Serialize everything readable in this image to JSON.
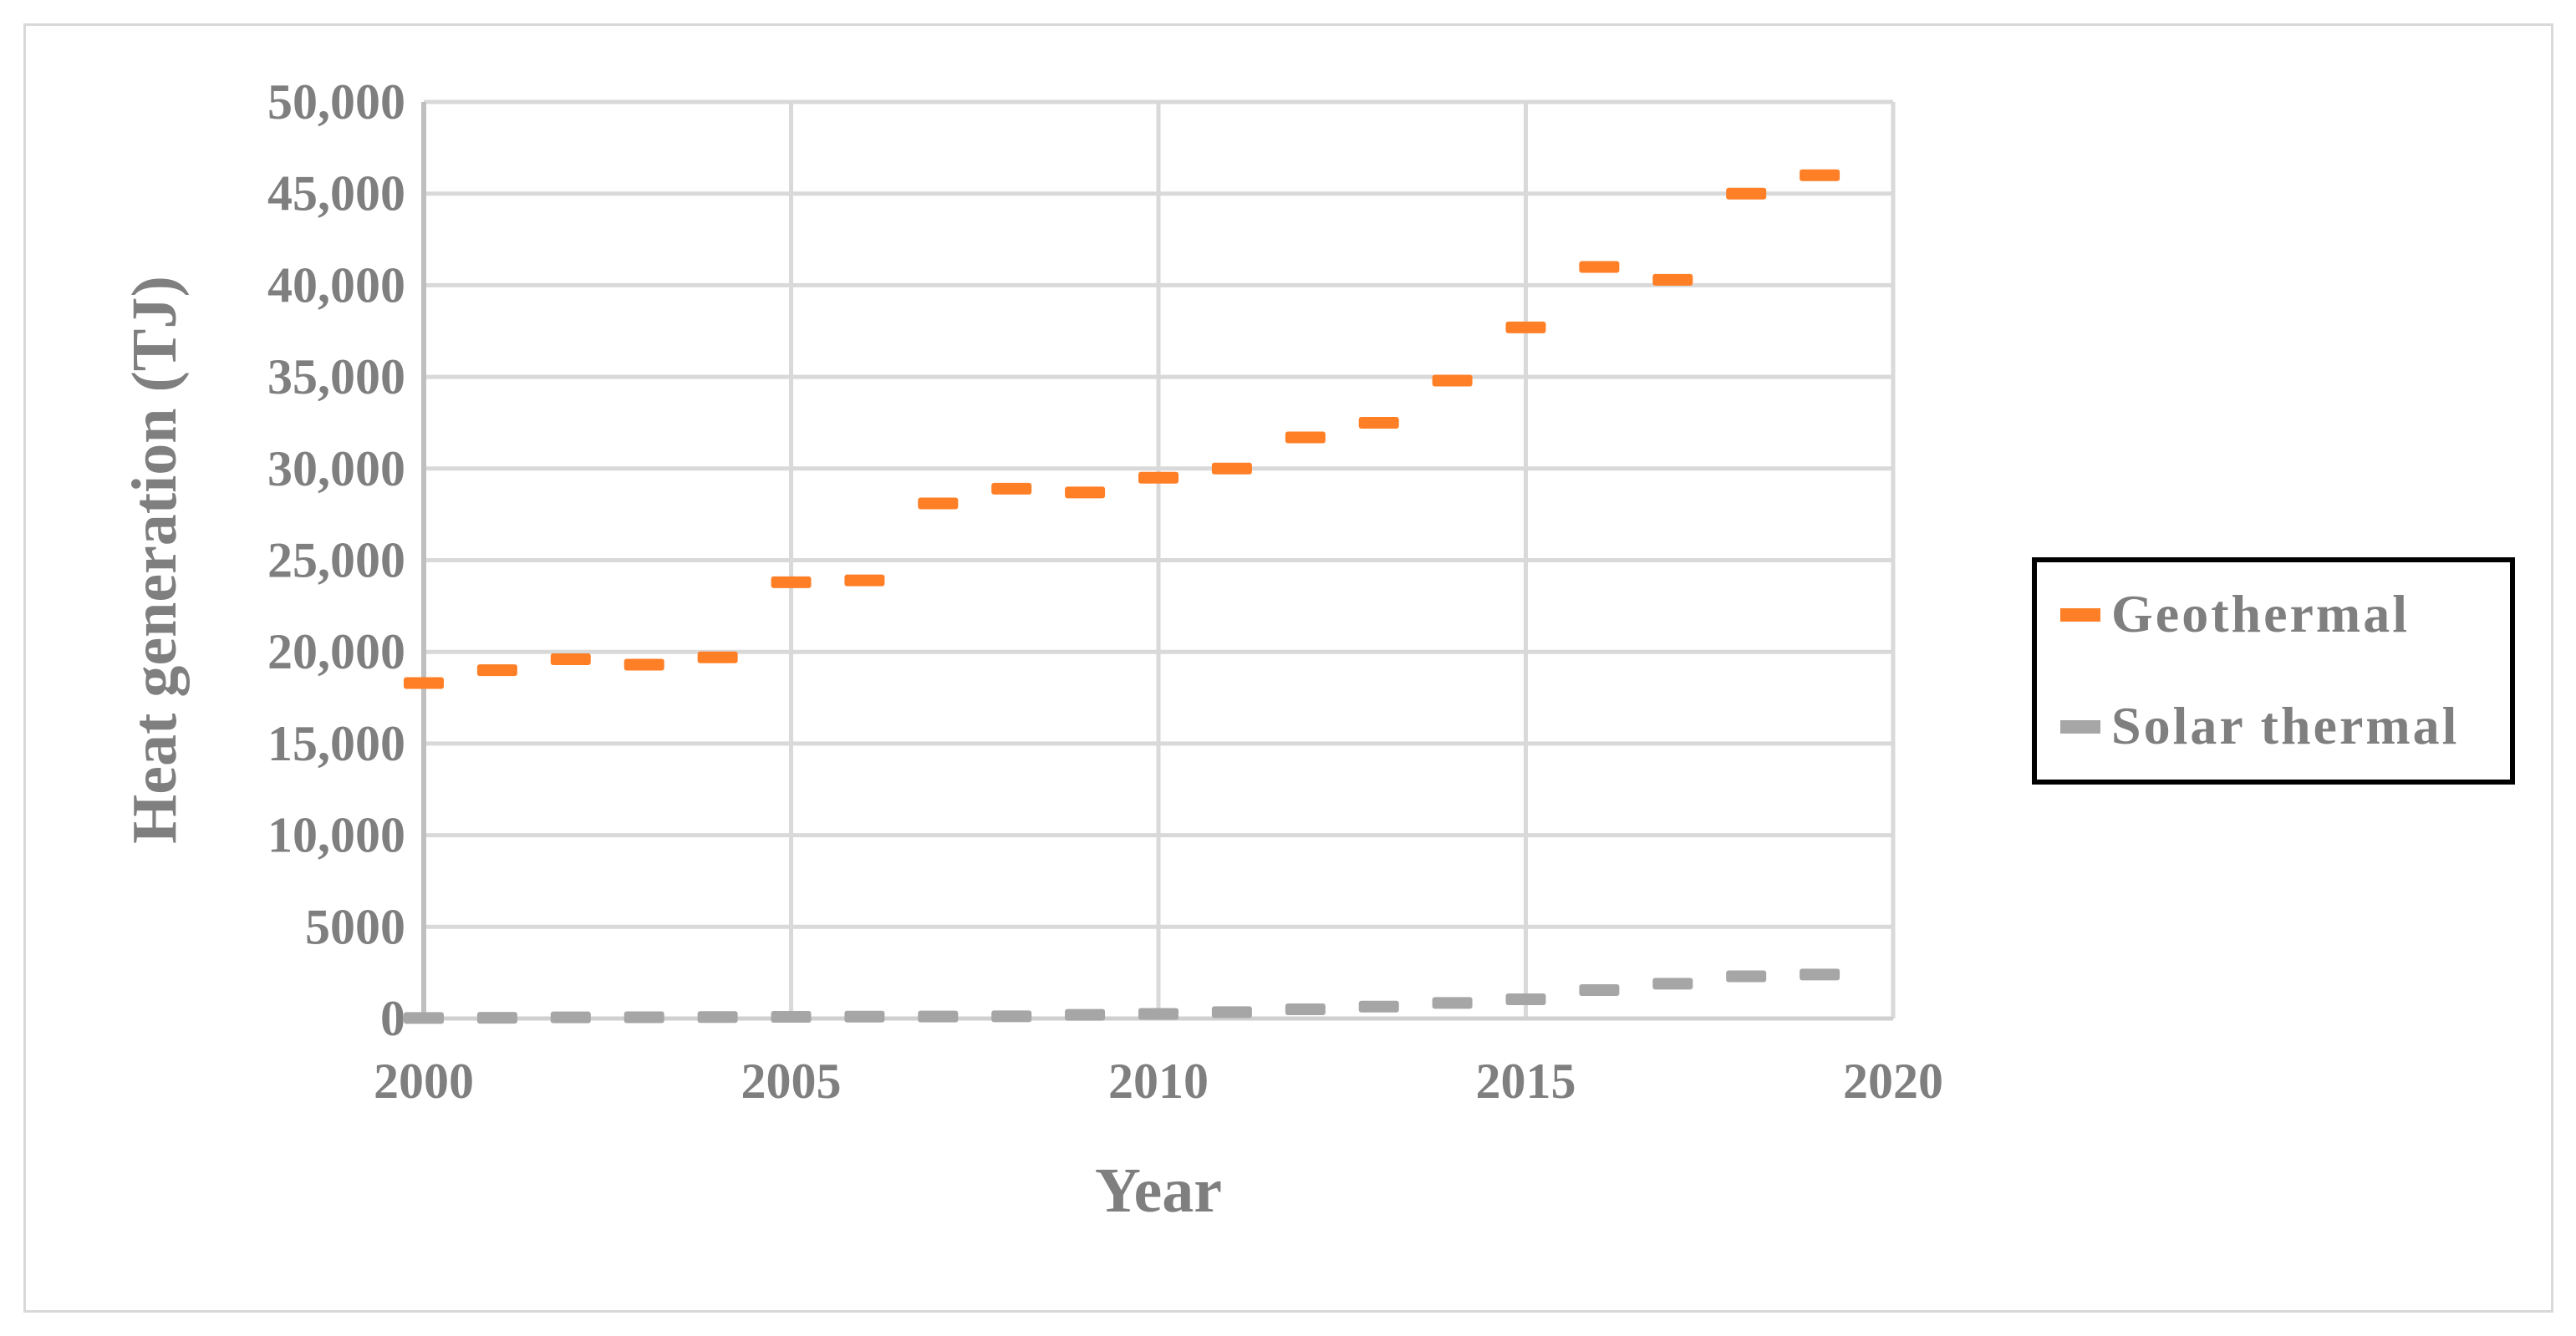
{
  "chart_data": {
    "type": "scatter",
    "title": "",
    "xlabel": "Year",
    "ylabel": "Heat generation (TJ)",
    "xlim": [
      2000,
      2020
    ],
    "ylim": [
      0,
      50000
    ],
    "x_ticks": [
      2000,
      2005,
      2010,
      2015,
      2020
    ],
    "x_tick_labels": [
      "2000",
      "2005",
      "2010",
      "2015",
      "2020"
    ],
    "y_ticks": [
      0,
      5000,
      10000,
      15000,
      20000,
      25000,
      30000,
      35000,
      40000,
      45000,
      50000
    ],
    "y_tick_labels": [
      "0",
      "5000",
      "10,000",
      "15,000",
      "20,000",
      "25,000",
      "30,000",
      "35,000",
      "40,000",
      "45,000",
      "50,000"
    ],
    "grid": true,
    "legend_position": "right",
    "x": [
      2000,
      2001,
      2002,
      2003,
      2004,
      2005,
      2006,
      2007,
      2008,
      2009,
      2010,
      2011,
      2012,
      2013,
      2014,
      2015,
      2016,
      2017,
      2018,
      2019
    ],
    "series": [
      {
        "name": "Geothermal",
        "color": "#ff7f27",
        "marker": "dash",
        "values": [
          18300,
          19000,
          19600,
          19300,
          19700,
          23800,
          23900,
          28100,
          28900,
          28700,
          29500,
          30000,
          31700,
          32500,
          34800,
          37700,
          41000,
          40300,
          45000,
          46000
        ]
      },
      {
        "name": "Solar thermal",
        "color": "#a6a6a6",
        "marker": "dash",
        "values": [
          30,
          40,
          60,
          70,
          80,
          90,
          100,
          110,
          120,
          200,
          250,
          350,
          500,
          650,
          850,
          1050,
          1550,
          1900,
          2300,
          2400
        ]
      }
    ]
  }
}
